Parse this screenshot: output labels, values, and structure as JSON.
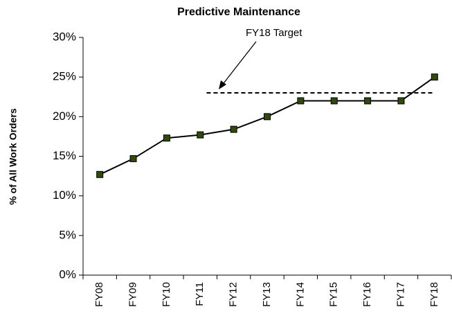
{
  "chart_data": {
    "type": "line",
    "title": "Predictive Maintenance",
    "y_label": "% of All Work Orders",
    "categories": [
      "FY08",
      "FY09",
      "FY10",
      "FY11",
      "FY12",
      "FY13",
      "FY14",
      "FY15",
      "FY16",
      "FY17",
      "FY18"
    ],
    "values": [
      12.7,
      14.7,
      17.3,
      17.7,
      18.4,
      20,
      22,
      22,
      22,
      22,
      25
    ],
    "color": "#000000",
    "marker_color": "#2f4a0a",
    "ylim": [
      0,
      30
    ],
    "yticks": [
      {
        "value": 0,
        "label": "0%"
      },
      {
        "value": 5,
        "label": "5%"
      },
      {
        "value": 10,
        "label": "10%"
      },
      {
        "value": 15,
        "label": "15%"
      },
      {
        "value": 20,
        "label": "20%"
      },
      {
        "value": 25,
        "label": "25%"
      },
      {
        "value": 30,
        "label": "30%"
      }
    ],
    "reference_line": {
      "value": 23,
      "label": "FY18 Target"
    },
    "grid": false
  }
}
